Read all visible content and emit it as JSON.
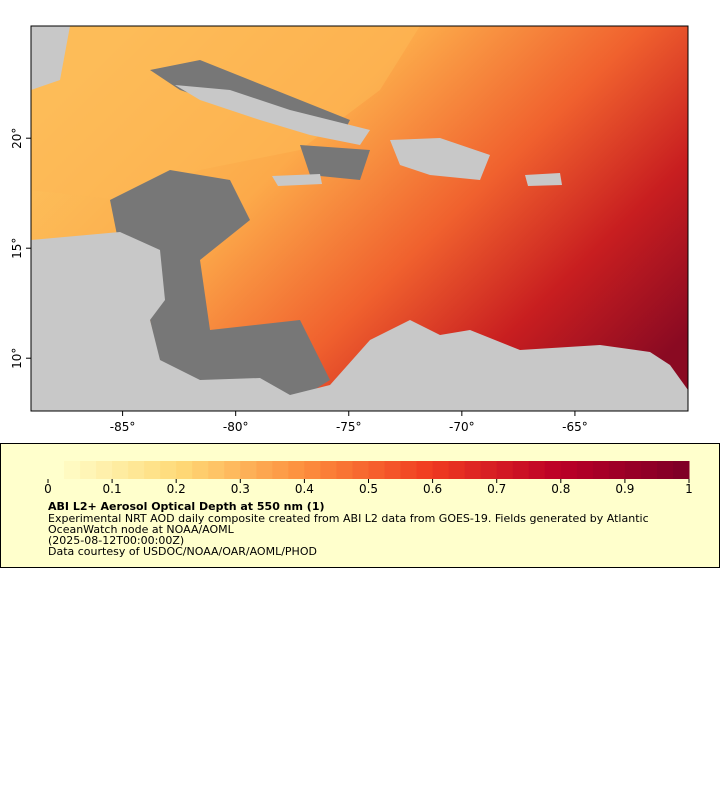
{
  "map": {
    "xlim": [
      -89.05,
      -60
    ],
    "ylim": [
      7.6,
      25.1
    ],
    "xticks": [
      {
        "value": -85,
        "label": "-85°"
      },
      {
        "value": -80,
        "label": "-80°"
      },
      {
        "value": -75,
        "label": "-75°"
      },
      {
        "value": -70,
        "label": "-70°"
      },
      {
        "value": -65,
        "label": "-65°"
      }
    ],
    "yticks": [
      {
        "value": 10,
        "label": "10°"
      },
      {
        "value": 15,
        "label": "15°"
      },
      {
        "value": 20,
        "label": "20°"
      }
    ]
  },
  "colorbar": {
    "range": [
      0,
      1
    ],
    "ticks": [
      0,
      0.1,
      0.2,
      0.3,
      0.4,
      0.5,
      0.6,
      0.7,
      0.8,
      0.9,
      1
    ]
  },
  "legend": {
    "title": "ABI L2+ Aerosol Optical Depth at 550 nm (1)",
    "description": "Experimental NRT AOD daily composite created from ABI L2 data from GOES-19. Fields generated by Atlantic OceanWatch node at NOAA/AOML",
    "date": "(2025-08-12T00:00:00Z)",
    "credit": "Data courtesy of USDOC/NOAA/OAR/AOML/PHOD"
  }
}
